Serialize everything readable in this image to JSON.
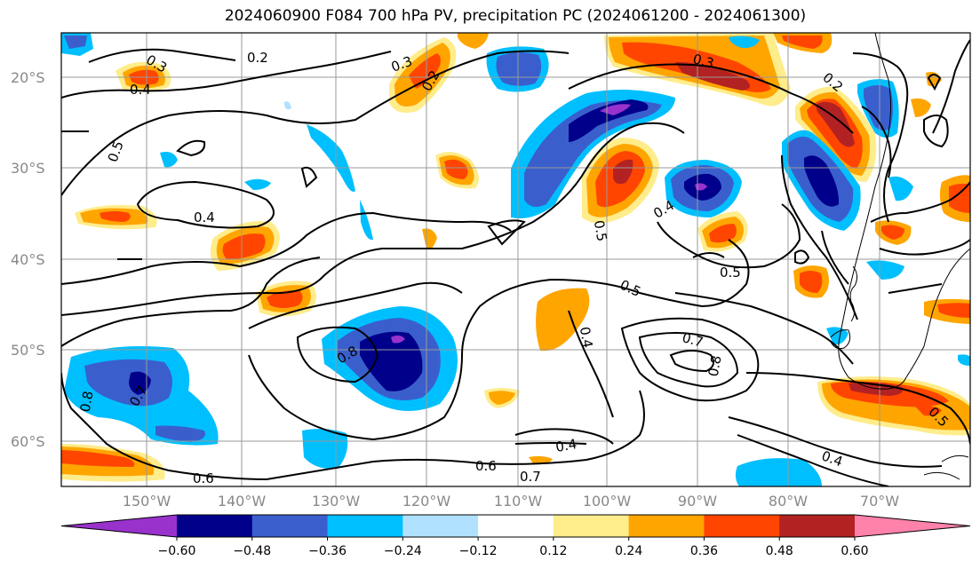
{
  "title": "2024060900 F084 700 hPa PV, precipitation PC (2024061200 - 2024061300)",
  "axes": {
    "lon_labels": [
      "150°W",
      "140°W",
      "130°W",
      "120°W",
      "110°W",
      "100°W",
      "90°W",
      "80°W",
      "70°W"
    ],
    "lat_labels": [
      "20°S",
      "30°S",
      "40°S",
      "50°S",
      "60°S"
    ]
  },
  "colorbar": {
    "tick_labels": [
      "−0.60",
      "−0.48",
      "−0.36",
      "−0.24",
      "−0.12",
      "0.12",
      "0.24",
      "0.36",
      "0.48",
      "0.60"
    ],
    "colors": [
      "#9932cc",
      "#00008b",
      "#3a5fcd",
      "#00bfff",
      "#b0e2ff",
      "#ffffff",
      "#ffec8b",
      "#ffa500",
      "#ff4500",
      "#b22222",
      "#ff82ab"
    ]
  },
  "contour_labels": [
    {
      "id": "c1",
      "text": "0.2"
    },
    {
      "id": "c2",
      "text": "0.3"
    },
    {
      "id": "c3",
      "text": "0.4"
    },
    {
      "id": "c4",
      "text": "0.3"
    },
    {
      "id": "c5",
      "text": "0.2"
    },
    {
      "id": "c6",
      "text": "0.5"
    },
    {
      "id": "c7",
      "text": "0.4"
    },
    {
      "id": "c8",
      "text": "0.4"
    },
    {
      "id": "c9",
      "text": "0.5"
    },
    {
      "id": "c10",
      "text": "0.5"
    },
    {
      "id": "c11",
      "text": "0.5"
    },
    {
      "id": "c12",
      "text": "0.8"
    },
    {
      "id": "c13",
      "text": "0.7"
    },
    {
      "id": "c14",
      "text": "0.8"
    },
    {
      "id": "c15",
      "text": "0.4"
    },
    {
      "id": "c16",
      "text": "0.8"
    },
    {
      "id": "c17",
      "text": "0.7"
    },
    {
      "id": "c18",
      "text": "0.4"
    },
    {
      "id": "c19",
      "text": "0.6"
    },
    {
      "id": "c20",
      "text": "0.7"
    },
    {
      "id": "c21",
      "text": "0.6"
    },
    {
      "id": "c22",
      "text": "0.4"
    },
    {
      "id": "c23",
      "text": "0.5"
    },
    {
      "id": "c24",
      "text": "0.3"
    },
    {
      "id": "c25",
      "text": "0.2"
    }
  ]
}
